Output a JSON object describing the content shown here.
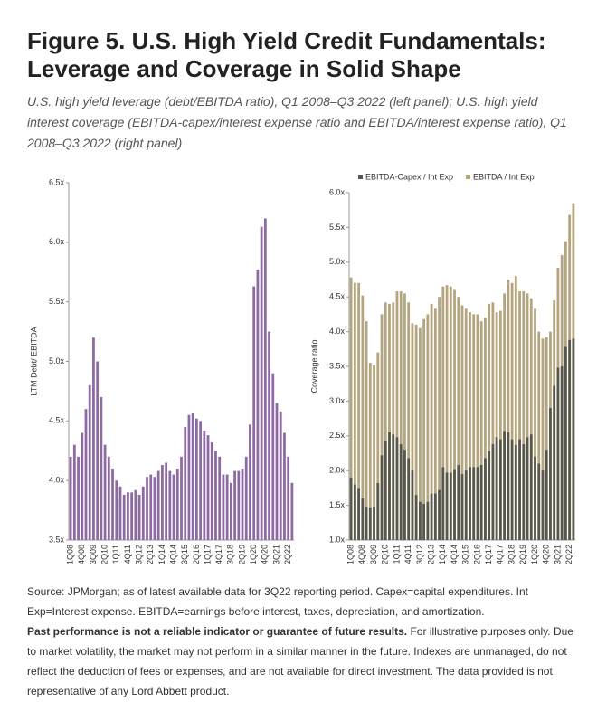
{
  "header": {
    "title": "Figure 5. U.S. High Yield Credit Fundamentals: Leverage and Coverage in Solid Shape",
    "subtitle": "U.S. high yield leverage (debt/EBITDA ratio), Q1 2008–Q3 2022 (left panel); U.S. high yield interest coverage (EBITDA-capex/interest expense ratio and EBITDA/interest expense ratio), Q1 2008–Q3 2022 (right panel)"
  },
  "chart_data": [
    {
      "type": "bar",
      "ylabel": "LTM Debt/ EBITDA",
      "color": "#8e6aa3",
      "categories": [
        "1Q08",
        null,
        null,
        "4Q08",
        null,
        null,
        "3Q09",
        null,
        null,
        "2Q10",
        null,
        null,
        "1Q11",
        null,
        null,
        "4Q11",
        null,
        null,
        "3Q12",
        null,
        null,
        "2Q13",
        null,
        null,
        "1Q14",
        null,
        null,
        "4Q14",
        null,
        null,
        "3Q15",
        null,
        null,
        "2Q16",
        null,
        null,
        "1Q17",
        null,
        null,
        "4Q17",
        null,
        null,
        "3Q18",
        null,
        null,
        "2Q19",
        null,
        null,
        "1Q20",
        null,
        null,
        "4Q20",
        null,
        null,
        "3Q21",
        null,
        null,
        "2Q22",
        null
      ],
      "values": [
        4.2,
        4.3,
        4.2,
        4.4,
        4.6,
        4.8,
        5.2,
        5.0,
        4.7,
        4.3,
        4.2,
        4.1,
        4.0,
        3.95,
        3.88,
        3.9,
        3.9,
        3.92,
        3.88,
        3.95,
        4.03,
        4.05,
        4.03,
        4.08,
        4.13,
        4.15,
        4.08,
        4.05,
        4.1,
        4.2,
        4.45,
        4.55,
        4.57,
        4.52,
        4.5,
        4.42,
        4.38,
        4.32,
        4.25,
        4.2,
        4.05,
        4.05,
        3.98,
        4.08,
        4.08,
        4.1,
        4.2,
        4.47,
        5.63,
        5.77,
        6.13,
        6.2,
        5.25,
        4.9,
        4.65,
        4.58,
        4.4,
        4.2,
        3.98
      ],
      "ylim": [
        3.5,
        6.5
      ],
      "yticks": [
        {
          "value": 3.5,
          "label": "3.5x"
        },
        {
          "value": 4.0,
          "label": "4.0x"
        },
        {
          "value": 4.5,
          "label": "4.5x"
        },
        {
          "value": 5.0,
          "label": "5.0x"
        },
        {
          "value": 5.5,
          "label": "5.5x"
        },
        {
          "value": 6.0,
          "label": "6.0x"
        },
        {
          "value": 6.5,
          "label": "6.5x"
        }
      ]
    },
    {
      "type": "bar",
      "ylabel": "Coverage ratio",
      "legend": "top",
      "categories": [
        "1Q08",
        null,
        null,
        "4Q08",
        null,
        null,
        "3Q09",
        null,
        null,
        "2Q10",
        null,
        null,
        "1Q11",
        null,
        null,
        "4Q11",
        null,
        null,
        "3Q12",
        null,
        null,
        "2Q13",
        null,
        null,
        "1Q14",
        null,
        null,
        "4Q14",
        null,
        null,
        "3Q15",
        null,
        null,
        "2Q16",
        null,
        null,
        "1Q17",
        null,
        null,
        "4Q17",
        null,
        null,
        "3Q18",
        null,
        null,
        "2Q19",
        null,
        null,
        "1Q20",
        null,
        null,
        "4Q20",
        null,
        null,
        "3Q21",
        null,
        null,
        "2Q22",
        null
      ],
      "series": [
        {
          "name": "EBITDA-Capex / Int Exp",
          "color": "#57574a",
          "values": [
            1.9,
            1.8,
            1.75,
            1.6,
            1.48,
            1.47,
            1.48,
            1.82,
            2.22,
            2.42,
            2.55,
            2.52,
            2.48,
            2.38,
            2.3,
            2.18,
            2.0,
            1.65,
            1.55,
            1.52,
            1.55,
            1.67,
            1.67,
            1.72,
            2.05,
            1.97,
            1.97,
            2.02,
            2.08,
            1.95,
            2.0,
            2.05,
            2.05,
            2.05,
            2.08,
            2.18,
            2.28,
            2.38,
            2.48,
            2.45,
            2.57,
            2.55,
            2.45,
            2.37,
            2.45,
            2.38,
            2.48,
            2.52,
            2.2,
            2.1,
            2.0,
            2.3,
            2.9,
            3.22,
            3.48,
            3.5,
            3.78,
            3.88,
            3.9
          ]
        },
        {
          "name": "EBITDA / Int Exp",
          "color": "#b5a57f",
          "values": [
            4.78,
            4.7,
            4.7,
            4.52,
            4.15,
            3.55,
            3.52,
            3.7,
            4.25,
            4.42,
            4.4,
            4.42,
            4.58,
            4.58,
            4.55,
            4.42,
            4.12,
            4.1,
            4.05,
            4.18,
            4.25,
            4.4,
            4.33,
            4.5,
            4.65,
            4.67,
            4.65,
            4.6,
            4.5,
            4.38,
            4.33,
            4.28,
            4.25,
            4.25,
            4.15,
            4.2,
            4.4,
            4.42,
            4.28,
            4.3,
            4.55,
            4.75,
            4.7,
            4.8,
            4.58,
            4.58,
            4.55,
            4.48,
            4.33,
            4.0,
            3.9,
            3.92,
            4.0,
            4.45,
            4.92,
            5.1,
            5.3,
            5.68,
            5.85
          ]
        }
      ],
      "ylim": [
        1.0,
        6.0
      ],
      "yticks": [
        {
          "value": 1.0,
          "label": "1.0x"
        },
        {
          "value": 1.5,
          "label": "1.5x"
        },
        {
          "value": 2.0,
          "label": "2.0x"
        },
        {
          "value": 2.5,
          "label": "2.5x"
        },
        {
          "value": 3.0,
          "label": "3.0x"
        },
        {
          "value": 3.5,
          "label": "3.5x"
        },
        {
          "value": 4.0,
          "label": "4.0x"
        },
        {
          "value": 4.5,
          "label": "4.5x"
        },
        {
          "value": 5.0,
          "label": "5.0x"
        },
        {
          "value": 5.5,
          "label": "5.5x"
        },
        {
          "value": 6.0,
          "label": "6.0x"
        }
      ]
    }
  ],
  "footer": {
    "source": "Source: JPMorgan; as of latest available data for 3Q22 reporting period. Capex=capital expenditures. Int Exp=Interest expense. EBITDA=earnings before interest, taxes, depreciation, and amortization.",
    "disclaimer_bold": "Past performance is not a reliable indicator or guarantee of future results.",
    "disclaimer": "For illustrative purposes only. Due to market volatility, the market may not perform in a similar manner in the future. Indexes are unmanaged, do not reflect the deduction of fees or expenses, and are not available for direct investment. The data provided is not representative of any Lord Abbett product."
  }
}
